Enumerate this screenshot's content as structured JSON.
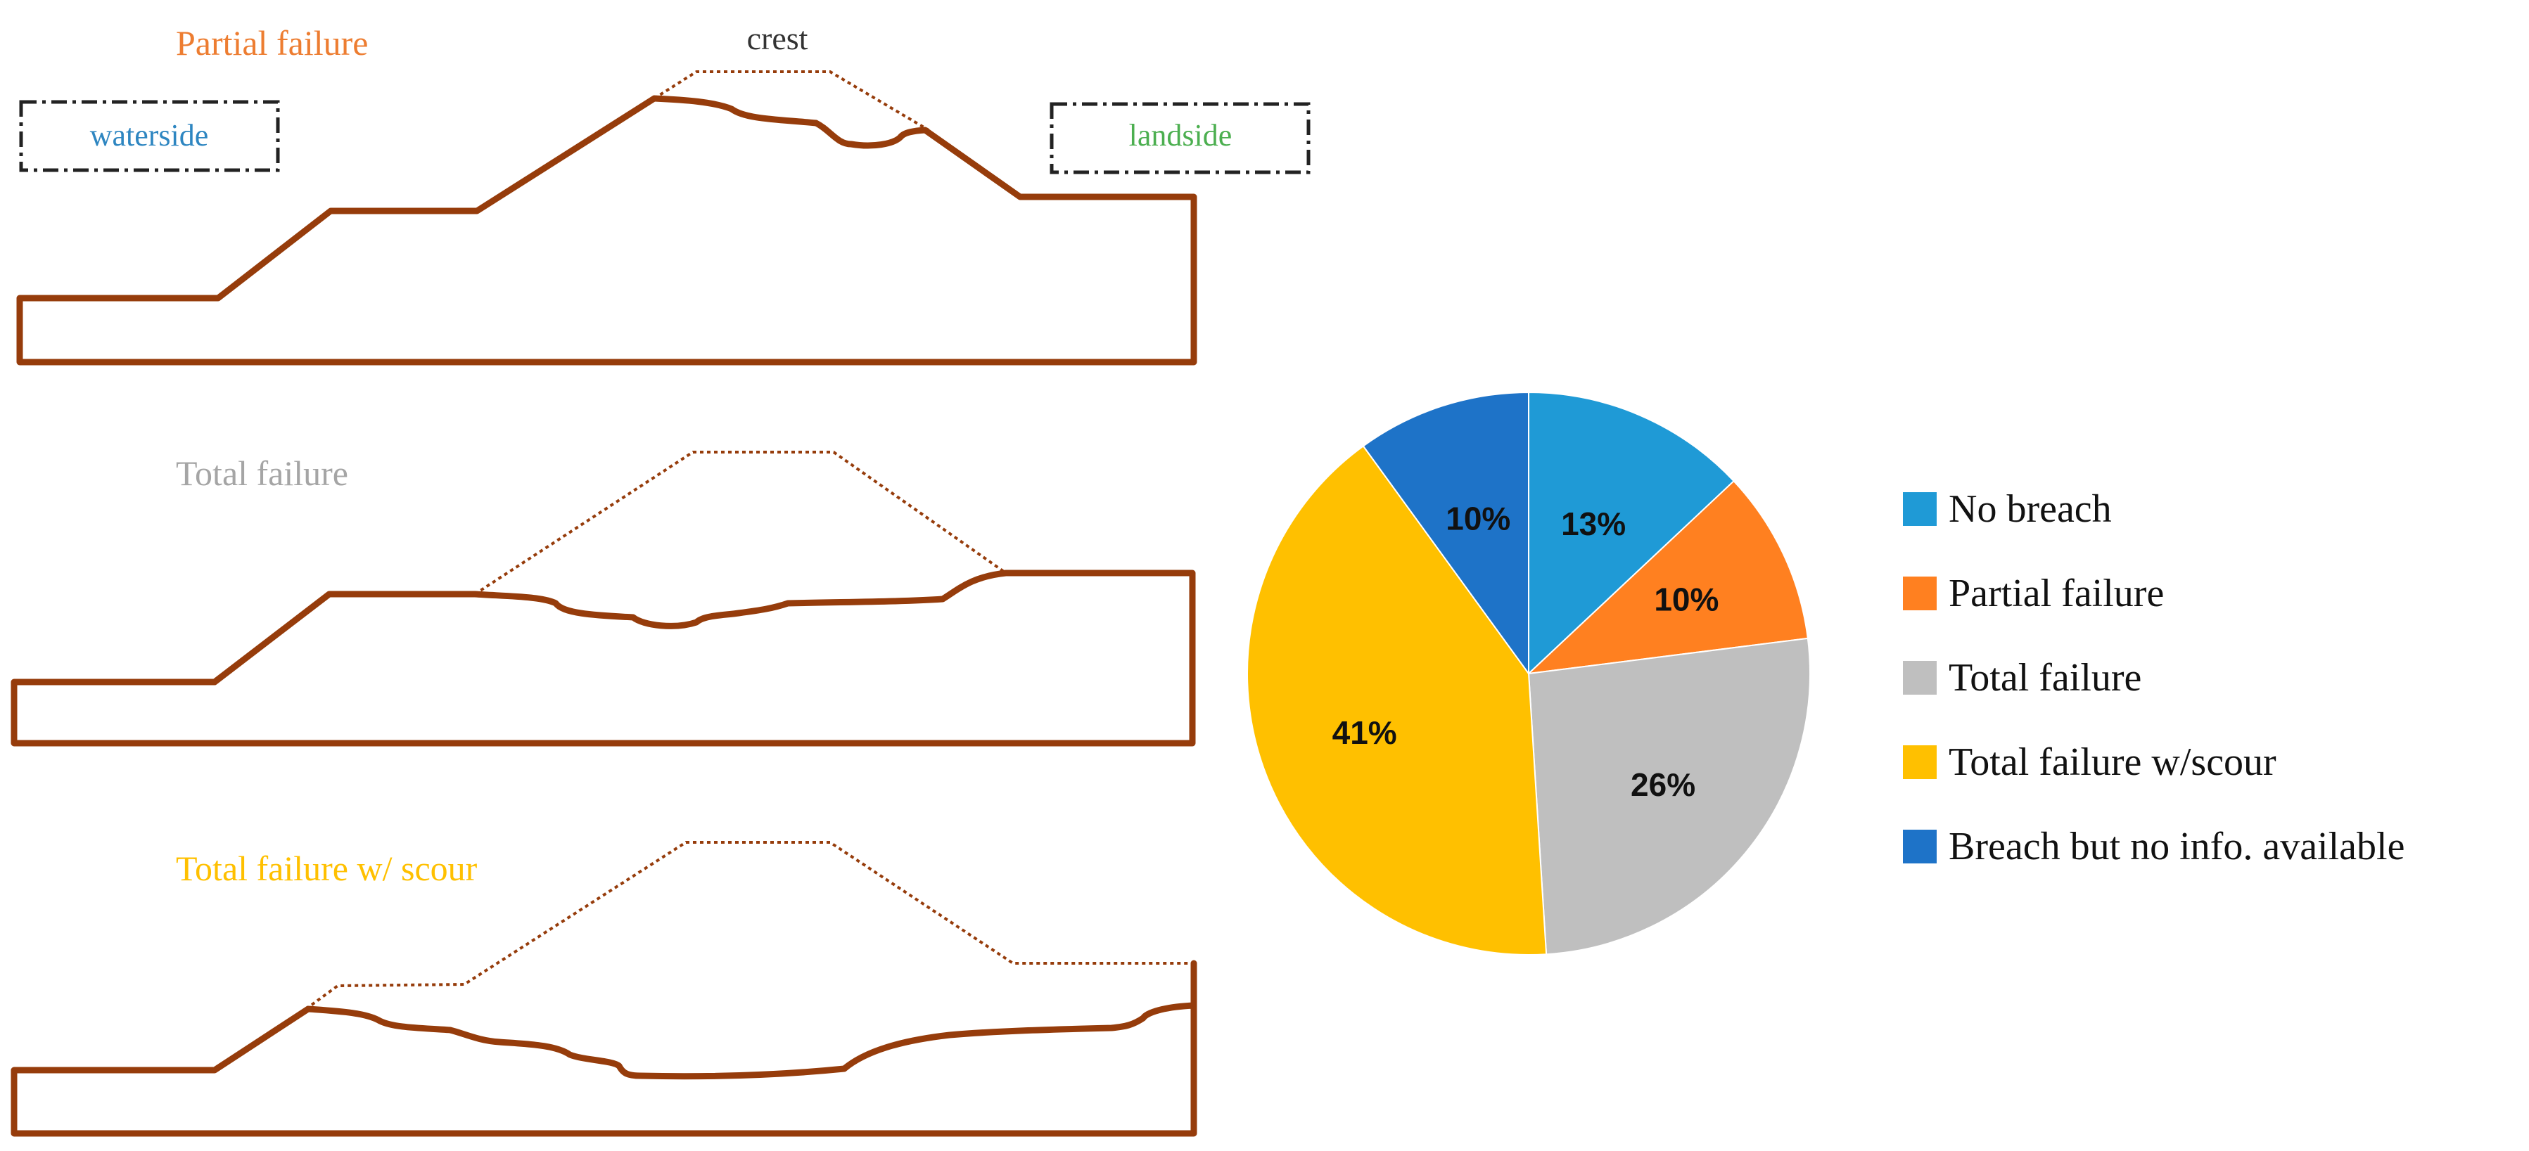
{
  "diagrams": {
    "partial": {
      "title": "Partial failure",
      "crest_label": "crest",
      "waterside_label": "waterside",
      "landside_label": "landside"
    },
    "total": {
      "title": "Total failure"
    },
    "scour": {
      "title": "Total failure w/ scour"
    }
  },
  "colors": {
    "embankment": "#963C0B",
    "partial": "#ED7D31",
    "total": "#A5A5A5",
    "scour": "#FFC000",
    "waterside": "#2E86C1",
    "landside": "#4CAF50",
    "crest_text": "#333333"
  },
  "chart_data": {
    "type": "pie",
    "start_angle_deg": 0,
    "direction": "clockwise",
    "slices": [
      {
        "label": "No breach",
        "value": 13,
        "display": "13%",
        "color": "#1F9AD6"
      },
      {
        "label": "Partial failure",
        "value": 10,
        "display": "10%",
        "color": "#FF8020"
      },
      {
        "label": "Total failure",
        "value": 26,
        "display": "26%",
        "color": "#BFBFBF"
      },
      {
        "label": "Total failure w/scour",
        "value": 41,
        "display": "41%",
        "color": "#FFC000"
      },
      {
        "label": "Breach but no info. available",
        "value": 10,
        "display": "10%",
        "color": "#1E73C8"
      }
    ],
    "legend_position": "right"
  }
}
